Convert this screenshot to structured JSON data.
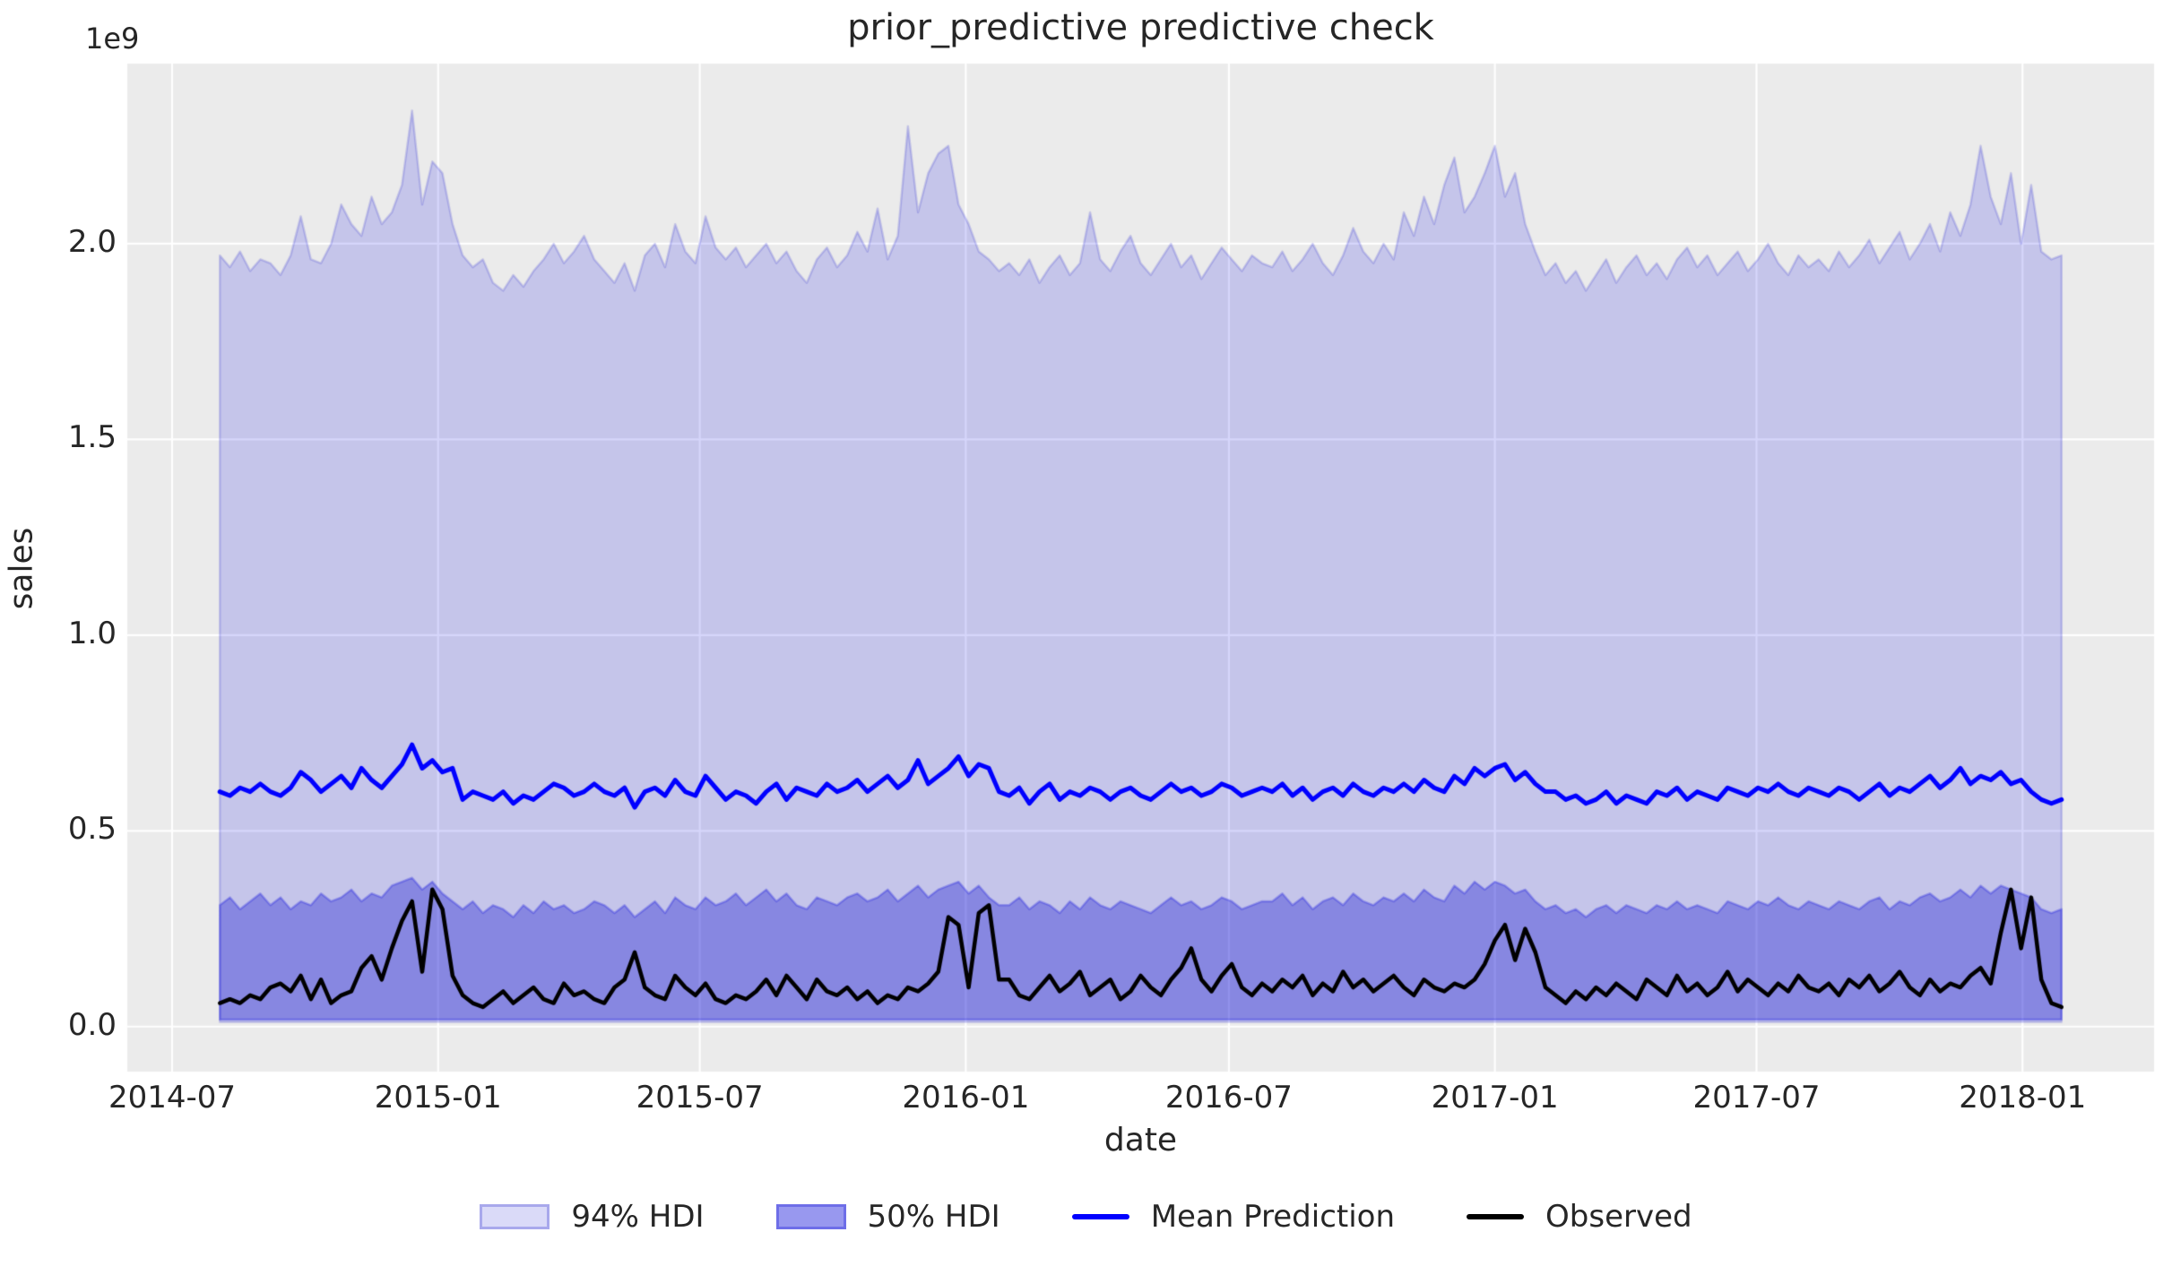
{
  "chart_data": {
    "type": "area",
    "title": "prior_predictive predictive check",
    "xlabel": "date",
    "ylabel": "sales",
    "y_offset_text": "1e9",
    "grid": true,
    "legend_position": "bottom-center",
    "x_tick_labels": [
      "2014-07",
      "2015-01",
      "2015-07",
      "2016-01",
      "2016-07",
      "2017-01",
      "2017-07",
      "2018-01"
    ],
    "x_tick_dates": [
      "2014-07-01",
      "2015-01-01",
      "2015-07-01",
      "2016-01-01",
      "2016-07-01",
      "2017-01-01",
      "2017-07-01",
      "2018-01-01"
    ],
    "y_tick_labels": [
      "0.0",
      "0.5",
      "1.0",
      "1.5",
      "2.0"
    ],
    "y_tick_values_1e9": [
      0.0,
      0.5,
      1.0,
      1.5,
      2.0
    ],
    "ylim_1e9": [
      -0.115,
      2.46
    ],
    "x_axis_range": [
      "2014-05-31",
      "2018-04-02"
    ],
    "x_start": "2014-08-03",
    "x_step_days": 7,
    "units": "1e9",
    "series": {
      "hdi94_upper": [
        1.97,
        1.94,
        1.98,
        1.93,
        1.96,
        1.95,
        1.92,
        1.97,
        2.07,
        1.96,
        1.95,
        2.0,
        2.1,
        2.05,
        2.02,
        2.12,
        2.05,
        2.08,
        2.15,
        2.34,
        2.1,
        2.21,
        2.18,
        2.05,
        1.97,
        1.94,
        1.96,
        1.9,
        1.88,
        1.92,
        1.89,
        1.93,
        1.96,
        2.0,
        1.95,
        1.98,
        2.02,
        1.96,
        1.93,
        1.9,
        1.95,
        1.88,
        1.97,
        2.0,
        1.94,
        2.05,
        1.98,
        1.95,
        2.07,
        1.99,
        1.96,
        1.99,
        1.94,
        1.97,
        2.0,
        1.95,
        1.98,
        1.93,
        1.9,
        1.96,
        1.99,
        1.94,
        1.97,
        2.03,
        1.98,
        2.09,
        1.96,
        2.02,
        2.3,
        2.08,
        2.18,
        2.23,
        2.25,
        2.1,
        2.05,
        1.98,
        1.96,
        1.93,
        1.95,
        1.92,
        1.96,
        1.9,
        1.94,
        1.97,
        1.92,
        1.95,
        2.08,
        1.96,
        1.93,
        1.98,
        2.02,
        1.95,
        1.92,
        1.96,
        2.0,
        1.94,
        1.97,
        1.91,
        1.95,
        1.99,
        1.96,
        1.93,
        1.97,
        1.95,
        1.94,
        1.98,
        1.93,
        1.96,
        2.0,
        1.95,
        1.92,
        1.97,
        2.04,
        1.98,
        1.95,
        2.0,
        1.96,
        2.08,
        2.02,
        2.12,
        2.05,
        2.15,
        2.22,
        2.08,
        2.12,
        2.18,
        2.25,
        2.12,
        2.18,
        2.05,
        1.98,
        1.92,
        1.95,
        1.9,
        1.93,
        1.88,
        1.92,
        1.96,
        1.9,
        1.94,
        1.97,
        1.92,
        1.95,
        1.91,
        1.96,
        1.99,
        1.94,
        1.97,
        1.92,
        1.95,
        1.98,
        1.93,
        1.96,
        2.0,
        1.95,
        1.92,
        1.97,
        1.94,
        1.96,
        1.93,
        1.98,
        1.94,
        1.97,
        2.01,
        1.95,
        1.99,
        2.03,
        1.96,
        2.0,
        2.05,
        1.98,
        2.08,
        2.02,
        2.1,
        2.25,
        2.12,
        2.05,
        2.18,
        2.0,
        2.15,
        1.98,
        1.96,
        1.97
      ],
      "hdi94_lower": 0.012,
      "hdi50_upper": [
        0.31,
        0.33,
        0.3,
        0.32,
        0.34,
        0.31,
        0.33,
        0.3,
        0.32,
        0.31,
        0.34,
        0.32,
        0.33,
        0.35,
        0.32,
        0.34,
        0.33,
        0.36,
        0.37,
        0.38,
        0.35,
        0.37,
        0.34,
        0.32,
        0.3,
        0.32,
        0.29,
        0.31,
        0.3,
        0.28,
        0.31,
        0.29,
        0.32,
        0.3,
        0.31,
        0.29,
        0.3,
        0.32,
        0.31,
        0.29,
        0.31,
        0.28,
        0.3,
        0.32,
        0.29,
        0.33,
        0.31,
        0.3,
        0.33,
        0.31,
        0.32,
        0.34,
        0.31,
        0.33,
        0.35,
        0.32,
        0.34,
        0.31,
        0.3,
        0.33,
        0.32,
        0.31,
        0.33,
        0.34,
        0.32,
        0.33,
        0.35,
        0.32,
        0.34,
        0.36,
        0.33,
        0.35,
        0.36,
        0.37,
        0.34,
        0.36,
        0.33,
        0.31,
        0.31,
        0.33,
        0.3,
        0.32,
        0.31,
        0.29,
        0.32,
        0.3,
        0.33,
        0.31,
        0.3,
        0.32,
        0.31,
        0.3,
        0.29,
        0.31,
        0.33,
        0.31,
        0.32,
        0.3,
        0.31,
        0.33,
        0.32,
        0.3,
        0.31,
        0.32,
        0.32,
        0.34,
        0.31,
        0.33,
        0.3,
        0.32,
        0.33,
        0.31,
        0.34,
        0.32,
        0.31,
        0.33,
        0.32,
        0.34,
        0.32,
        0.35,
        0.33,
        0.32,
        0.36,
        0.34,
        0.37,
        0.35,
        0.37,
        0.36,
        0.34,
        0.35,
        0.32,
        0.3,
        0.31,
        0.29,
        0.3,
        0.28,
        0.3,
        0.31,
        0.29,
        0.31,
        0.3,
        0.29,
        0.31,
        0.3,
        0.32,
        0.3,
        0.31,
        0.3,
        0.29,
        0.32,
        0.31,
        0.3,
        0.32,
        0.31,
        0.33,
        0.31,
        0.3,
        0.32,
        0.31,
        0.3,
        0.32,
        0.31,
        0.3,
        0.32,
        0.33,
        0.3,
        0.32,
        0.31,
        0.33,
        0.34,
        0.32,
        0.33,
        0.35,
        0.33,
        0.36,
        0.34,
        0.36,
        0.35,
        0.34,
        0.33,
        0.3,
        0.29,
        0.3
      ],
      "hdi50_lower": 0.018,
      "mean_prediction": [
        0.6,
        0.59,
        0.61,
        0.6,
        0.62,
        0.6,
        0.59,
        0.61,
        0.65,
        0.63,
        0.6,
        0.62,
        0.64,
        0.61,
        0.66,
        0.63,
        0.61,
        0.64,
        0.67,
        0.72,
        0.66,
        0.68,
        0.65,
        0.66,
        0.58,
        0.6,
        0.59,
        0.58,
        0.6,
        0.57,
        0.59,
        0.58,
        0.6,
        0.62,
        0.61,
        0.59,
        0.6,
        0.62,
        0.6,
        0.59,
        0.61,
        0.56,
        0.6,
        0.61,
        0.59,
        0.63,
        0.6,
        0.59,
        0.64,
        0.61,
        0.58,
        0.6,
        0.59,
        0.57,
        0.6,
        0.62,
        0.58,
        0.61,
        0.6,
        0.59,
        0.62,
        0.6,
        0.61,
        0.63,
        0.6,
        0.62,
        0.64,
        0.61,
        0.63,
        0.68,
        0.62,
        0.64,
        0.66,
        0.69,
        0.64,
        0.67,
        0.66,
        0.6,
        0.59,
        0.61,
        0.57,
        0.6,
        0.62,
        0.58,
        0.6,
        0.59,
        0.61,
        0.6,
        0.58,
        0.6,
        0.61,
        0.59,
        0.58,
        0.6,
        0.62,
        0.6,
        0.61,
        0.59,
        0.6,
        0.62,
        0.61,
        0.59,
        0.6,
        0.61,
        0.6,
        0.62,
        0.59,
        0.61,
        0.58,
        0.6,
        0.61,
        0.59,
        0.62,
        0.6,
        0.59,
        0.61,
        0.6,
        0.62,
        0.6,
        0.63,
        0.61,
        0.6,
        0.64,
        0.62,
        0.66,
        0.64,
        0.66,
        0.67,
        0.63,
        0.65,
        0.62,
        0.6,
        0.6,
        0.58,
        0.59,
        0.57,
        0.58,
        0.6,
        0.57,
        0.59,
        0.58,
        0.57,
        0.6,
        0.59,
        0.61,
        0.58,
        0.6,
        0.59,
        0.58,
        0.61,
        0.6,
        0.59,
        0.61,
        0.6,
        0.62,
        0.6,
        0.59,
        0.61,
        0.6,
        0.59,
        0.61,
        0.6,
        0.58,
        0.6,
        0.62,
        0.59,
        0.61,
        0.6,
        0.62,
        0.64,
        0.61,
        0.63,
        0.66,
        0.62,
        0.64,
        0.63,
        0.65,
        0.62,
        0.63,
        0.6,
        0.58,
        0.57,
        0.58
      ],
      "observed": [
        0.06,
        0.07,
        0.06,
        0.08,
        0.07,
        0.1,
        0.11,
        0.09,
        0.13,
        0.07,
        0.12,
        0.06,
        0.08,
        0.09,
        0.15,
        0.18,
        0.12,
        0.2,
        0.27,
        0.32,
        0.14,
        0.35,
        0.3,
        0.13,
        0.08,
        0.06,
        0.05,
        0.07,
        0.09,
        0.06,
        0.08,
        0.1,
        0.07,
        0.06,
        0.11,
        0.08,
        0.09,
        0.07,
        0.06,
        0.1,
        0.12,
        0.19,
        0.1,
        0.08,
        0.07,
        0.13,
        0.1,
        0.08,
        0.11,
        0.07,
        0.06,
        0.08,
        0.07,
        0.09,
        0.12,
        0.08,
        0.13,
        0.1,
        0.07,
        0.12,
        0.09,
        0.08,
        0.1,
        0.07,
        0.09,
        0.06,
        0.08,
        0.07,
        0.1,
        0.09,
        0.11,
        0.14,
        0.28,
        0.26,
        0.1,
        0.29,
        0.31,
        0.12,
        0.12,
        0.08,
        0.07,
        0.1,
        0.13,
        0.09,
        0.11,
        0.14,
        0.08,
        0.1,
        0.12,
        0.07,
        0.09,
        0.13,
        0.1,
        0.08,
        0.12,
        0.15,
        0.2,
        0.12,
        0.09,
        0.13,
        0.16,
        0.1,
        0.08,
        0.11,
        0.09,
        0.12,
        0.1,
        0.13,
        0.08,
        0.11,
        0.09,
        0.14,
        0.1,
        0.12,
        0.09,
        0.11,
        0.13,
        0.1,
        0.08,
        0.12,
        0.1,
        0.09,
        0.11,
        0.1,
        0.12,
        0.16,
        0.22,
        0.26,
        0.17,
        0.25,
        0.19,
        0.1,
        0.08,
        0.06,
        0.09,
        0.07,
        0.1,
        0.08,
        0.11,
        0.09,
        0.07,
        0.12,
        0.1,
        0.08,
        0.13,
        0.09,
        0.11,
        0.08,
        0.1,
        0.14,
        0.09,
        0.12,
        0.1,
        0.08,
        0.11,
        0.09,
        0.13,
        0.1,
        0.09,
        0.11,
        0.08,
        0.12,
        0.1,
        0.13,
        0.09,
        0.11,
        0.14,
        0.1,
        0.08,
        0.12,
        0.09,
        0.11,
        0.1,
        0.13,
        0.15,
        0.11,
        0.24,
        0.35,
        0.2,
        0.33,
        0.12,
        0.06,
        0.05
      ]
    }
  },
  "legend": {
    "items": [
      {
        "label": "94% HDI",
        "type": "patch",
        "fill": "#dadaf8",
        "edge": "#a8a8ec"
      },
      {
        "label": "50% HDI",
        "type": "patch",
        "fill": "#9898ef",
        "edge": "#6e6ee8"
      },
      {
        "label": "Mean Prediction",
        "type": "line",
        "color": "#0000ff"
      },
      {
        "label": "Observed",
        "type": "line",
        "color": "#000000"
      }
    ]
  },
  "colors": {
    "figure_bg": "#ffffff",
    "axes_bg": "#ebebeb",
    "grid": "#ffffff",
    "hdi94_fill": "rgba(0,0,230,0.16)",
    "hdi94_edge": "rgba(0,0,200,0.17)",
    "hdi50_fill": "rgba(10,10,205,0.33)",
    "hdi50_edge": "rgba(25,25,225,0.30)",
    "mean_line": "#0000ff",
    "observed_line": "#000000",
    "text": "#262626"
  }
}
